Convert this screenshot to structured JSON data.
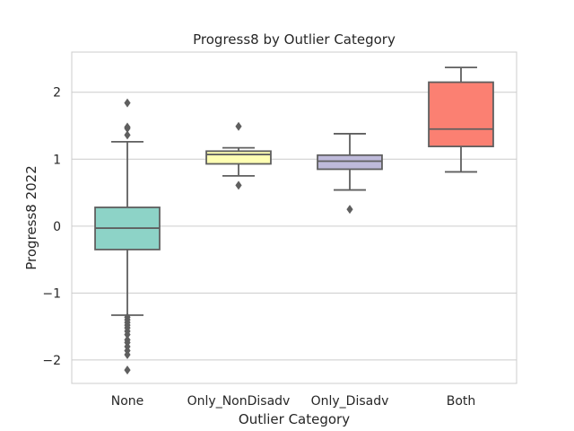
{
  "chart_data": {
    "type": "box",
    "title": "Progress8  by Outlier Category",
    "xlabel": "Outlier Category",
    "ylabel": "Progress8 2022",
    "ylim": [
      -2.35,
      2.6
    ],
    "yticks": [
      -2,
      -1,
      0,
      1,
      2
    ],
    "ytick_labels": [
      "−2",
      "−1",
      "0",
      "1",
      "2"
    ],
    "grid": "horizontal",
    "legend": "none",
    "categories": [
      "None",
      "Only_NonDisadv",
      "Only_Disadv",
      "Both"
    ],
    "series": [
      {
        "category": "None",
        "color": "#8dd3c7",
        "whisker_low": -1.33,
        "q1": -0.35,
        "median": -0.03,
        "q3": 0.28,
        "whisker_high": 1.26,
        "outliers": [
          1.84,
          1.48,
          1.46,
          1.36,
          -1.36,
          -1.4,
          -1.44,
          -1.48,
          -1.52,
          -1.57,
          -1.62,
          -1.7,
          -1.74,
          -1.8,
          -1.86,
          -1.92,
          -2.15
        ]
      },
      {
        "category": "Only_NonDisadv",
        "color": "#ffffb3",
        "whisker_low": 0.75,
        "q1": 0.93,
        "median": 1.07,
        "q3": 1.12,
        "whisker_high": 1.17,
        "outliers": [
          1.49,
          0.61
        ]
      },
      {
        "category": "Only_Disadv",
        "color": "#bebada",
        "whisker_low": 0.54,
        "q1": 0.85,
        "median": 0.97,
        "q3": 1.06,
        "whisker_high": 1.38,
        "outliers": [
          0.25
        ]
      },
      {
        "category": "Both",
        "color": "#fb8072",
        "whisker_low": 0.81,
        "q1": 1.19,
        "median": 1.45,
        "q3": 2.15,
        "whisker_high": 2.37,
        "outliers": []
      }
    ]
  }
}
